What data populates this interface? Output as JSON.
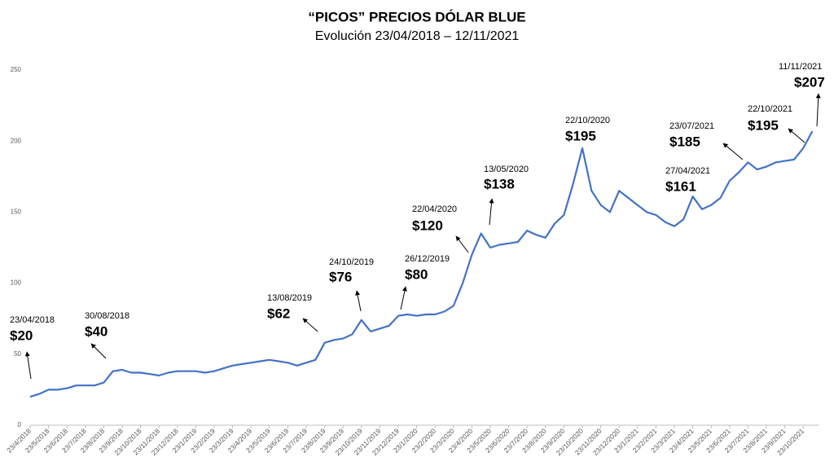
{
  "chart_data": {
    "type": "line",
    "title": "“PICOS” PRECIOS DÓLAR BLUE",
    "subtitle": "Evolución 23/04/2018 – 12/11/2021",
    "categories": [
      "23/4/2018",
      null,
      "23/5/2018",
      null,
      "23/6/2018",
      null,
      "23/7/2018",
      null,
      "23/8/2018",
      null,
      "23/9/2018",
      null,
      "23/10/2018",
      null,
      "23/11/2018",
      null,
      "23/12/2018",
      null,
      "23/1/2019",
      null,
      "23/2/2019",
      null,
      "23/3/2019",
      null,
      "23/4/2019",
      null,
      "23/5/2019",
      null,
      "23/6/2019",
      null,
      "23/7/2019",
      null,
      "23/8/2019",
      null,
      "23/9/2019",
      null,
      "23/10/2019",
      null,
      "23/11/2019",
      null,
      "23/12/2019",
      null,
      "23/1/2020",
      null,
      "23/2/2020",
      null,
      "23/3/2020",
      null,
      "23/4/2020",
      null,
      "23/5/2020",
      null,
      "23/6/2020",
      null,
      "23/7/2020",
      null,
      "23/8/2020",
      null,
      "23/9/2020",
      null,
      "23/10/2020",
      null,
      "23/11/2020",
      null,
      "23/12/2020",
      null,
      "23/1/2021",
      null,
      "23/2/2021",
      null,
      "23/3/2021",
      null,
      "23/4/2021",
      null,
      "23/5/2021",
      null,
      "23/6/2021",
      null,
      "23/7/2021",
      null,
      "23/8/2021",
      null,
      "23/9/2021",
      null,
      "23/10/2021",
      null
    ],
    "series": [
      {
        "color": "#4472c4",
        "values": [
          20,
          22,
          25,
          25,
          26,
          28,
          28,
          28,
          30,
          38,
          39,
          37,
          37,
          36,
          35,
          37,
          38,
          38,
          38,
          37,
          38,
          40,
          42,
          43,
          44,
          45,
          46,
          45,
          44,
          42,
          44,
          46,
          58,
          60,
          61,
          64,
          74,
          66,
          68,
          70,
          77,
          78,
          77,
          78,
          78,
          80,
          84,
          100,
          120,
          135,
          125,
          127,
          128,
          129,
          137,
          134,
          132,
          142,
          148,
          170,
          195,
          165,
          155,
          150,
          165,
          160,
          155,
          150,
          148,
          143,
          140,
          145,
          161,
          152,
          155,
          160,
          172,
          178,
          185,
          180,
          182,
          185,
          186,
          187,
          195,
          207
        ]
      }
    ],
    "ylim": [
      0,
      250
    ],
    "yticks": [
      0,
      50,
      100,
      150,
      200,
      250
    ],
    "grid": false,
    "annotations": [
      {
        "date": "23/04/2018",
        "label": "$20"
      },
      {
        "date": "30/08/2018",
        "label": "$40"
      },
      {
        "date": "13/08/2019",
        "label": "$62"
      },
      {
        "date": "24/10/2019",
        "label": "$76"
      },
      {
        "date": "26/12/2019",
        "label": "$80"
      },
      {
        "date": "22/04/2020",
        "label": "$120"
      },
      {
        "date": "13/05/2020",
        "label": "$138"
      },
      {
        "date": "22/10/2020",
        "label": "$195"
      },
      {
        "date": "27/04/2021",
        "label": "$161"
      },
      {
        "date": "23/07/2021",
        "label": "$185"
      },
      {
        "date": "22/10/2021",
        "label": "$195"
      },
      {
        "date": "11/11/2021",
        "label": "$207"
      }
    ]
  }
}
